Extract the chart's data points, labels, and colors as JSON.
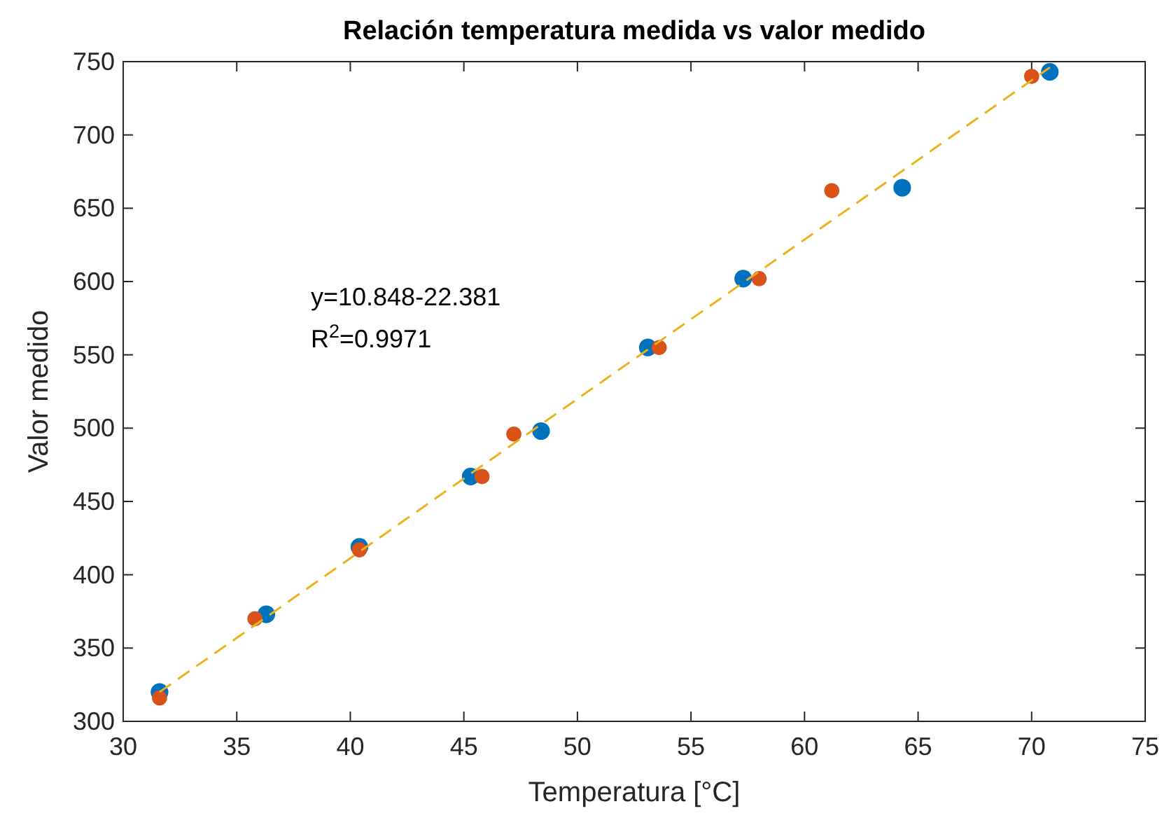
{
  "chart_data": {
    "type": "scatter",
    "title": "Relación  temperatura medida vs valor medido",
    "xlabel": "Temperatura [°C]",
    "ylabel": "Valor medido",
    "xlim": [
      30,
      75
    ],
    "xticks": [
      30,
      35,
      40,
      45,
      50,
      55,
      60,
      65,
      70,
      75
    ],
    "ylim": [
      300,
      750
    ],
    "yticks": [
      300,
      350,
      400,
      450,
      500,
      550,
      600,
      650,
      700,
      750
    ],
    "grid": false,
    "marker": "circle",
    "annotations": [
      "y=10.848-22.381",
      "R$^{2}$=0.9971"
    ],
    "series": [
      {
        "color": "#0072bd",
        "x": [
          31.6,
          36.3,
          40.4,
          45.3,
          48.4,
          53.1,
          57.3,
          64.3,
          70.8
        ],
        "values": [
          320,
          373,
          419,
          467,
          498,
          555,
          602,
          664,
          743
        ]
      },
      {
        "color": "#d95319",
        "x": [
          31.6,
          35.8,
          40.4,
          45.8,
          47.2,
          53.6,
          58.0,
          61.2,
          70.0
        ],
        "values": [
          316,
          370,
          417,
          467,
          496,
          555,
          602,
          662,
          740
        ]
      },
      {
        "type": "line",
        "color": "#edb120",
        "line_style": "dashed",
        "marker": "none",
        "x": [
          31.6,
          70.8
        ],
        "values": [
          320,
          746
        ]
      }
    ]
  }
}
